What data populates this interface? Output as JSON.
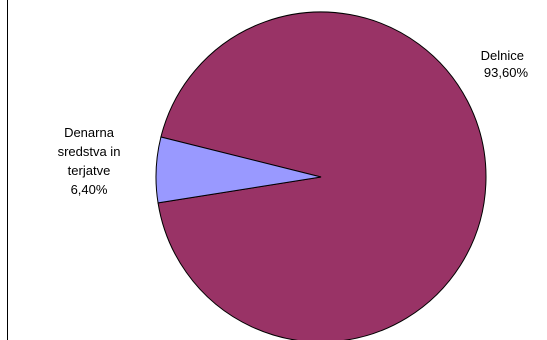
{
  "chart_data": {
    "type": "pie",
    "title": "",
    "slices": [
      {
        "label": "Delnice",
        "value": 93.6,
        "value_label": "93,60%",
        "color": "#993366"
      },
      {
        "label": "Denarna sredstva in terjatve",
        "label_lines": [
          "Denarna",
          "sredstva in",
          "terjatve"
        ],
        "value": 6.4,
        "value_label": "6,40%",
        "color": "#9999ff"
      }
    ],
    "legend": "none",
    "data_labels": "outside",
    "slice_border_color": "#000000"
  }
}
